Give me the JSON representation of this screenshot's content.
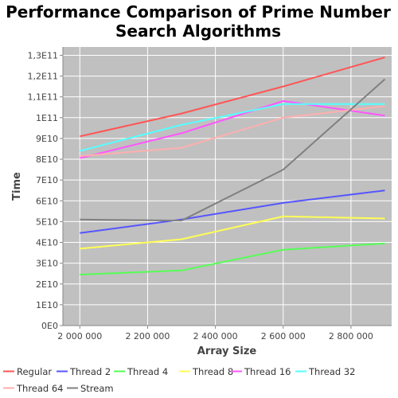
{
  "chart_data": {
    "type": "line",
    "title": "Performance Comparison of Prime Number Search Algorithms",
    "title_lines": [
      "Performance Comparison of Prime Number",
      "Search Algorithms"
    ],
    "xlabel": "Array Size",
    "ylabel": "Time",
    "xlim": [
      1950000,
      2920000
    ],
    "ylim": [
      0,
      134000000000
    ],
    "x_ticks": [
      2000000,
      2200000,
      2400000,
      2600000,
      2800000
    ],
    "x_tick_labels": [
      "2 000 000",
      "2 200 000",
      "2 400 000",
      "2 600 000",
      "2 800 000"
    ],
    "y_ticks": [
      0,
      10000000000,
      20000000000,
      30000000000,
      40000000000,
      50000000000,
      60000000000,
      70000000000,
      80000000000,
      90000000000,
      100000000000,
      110000000000,
      120000000000,
      130000000000
    ],
    "y_tick_labels": [
      "0E0",
      "1E10",
      "2E10",
      "3E10",
      "4E10",
      "5E10",
      "6E10",
      "7E10",
      "8E10",
      "9E10",
      "1E11",
      "1,1E11",
      "1,2E11",
      "1,3E11"
    ],
    "grid": true,
    "background": "#c0c0c0",
    "legend_position": "bottom",
    "x": [
      2000000,
      2300000,
      2600000,
      2900000
    ],
    "series": [
      {
        "name": "Regular",
        "color": "#ff5555",
        "values": [
          91000000000,
          102000000000,
          115000000000,
          129000000000
        ]
      },
      {
        "name": "Thread 2",
        "color": "#5555ff",
        "values": [
          44500000000,
          51000000000,
          59000000000,
          65000000000
        ]
      },
      {
        "name": "Thread 4",
        "color": "#55ff55",
        "values": [
          24500000000,
          26500000000,
          36500000000,
          39500000000
        ]
      },
      {
        "name": "Thread 8",
        "color": "#ffff55",
        "values": [
          37000000000,
          41500000000,
          52500000000,
          51500000000
        ]
      },
      {
        "name": "Thread 16",
        "color": "#ff55ff",
        "values": [
          80500000000,
          92500000000,
          108000000000,
          101000000000
        ]
      },
      {
        "name": "Thread 32",
        "color": "#55ffff",
        "values": [
          84000000000,
          96500000000,
          106500000000,
          106500000000
        ]
      },
      {
        "name": "Thread 64",
        "color": "#ffafaf",
        "values": [
          81500000000,
          85500000000,
          100000000000,
          105500000000
        ]
      },
      {
        "name": "Stream",
        "color": "#808080",
        "values": [
          51000000000,
          50500000000,
          75000000000,
          118500000000
        ]
      }
    ]
  }
}
